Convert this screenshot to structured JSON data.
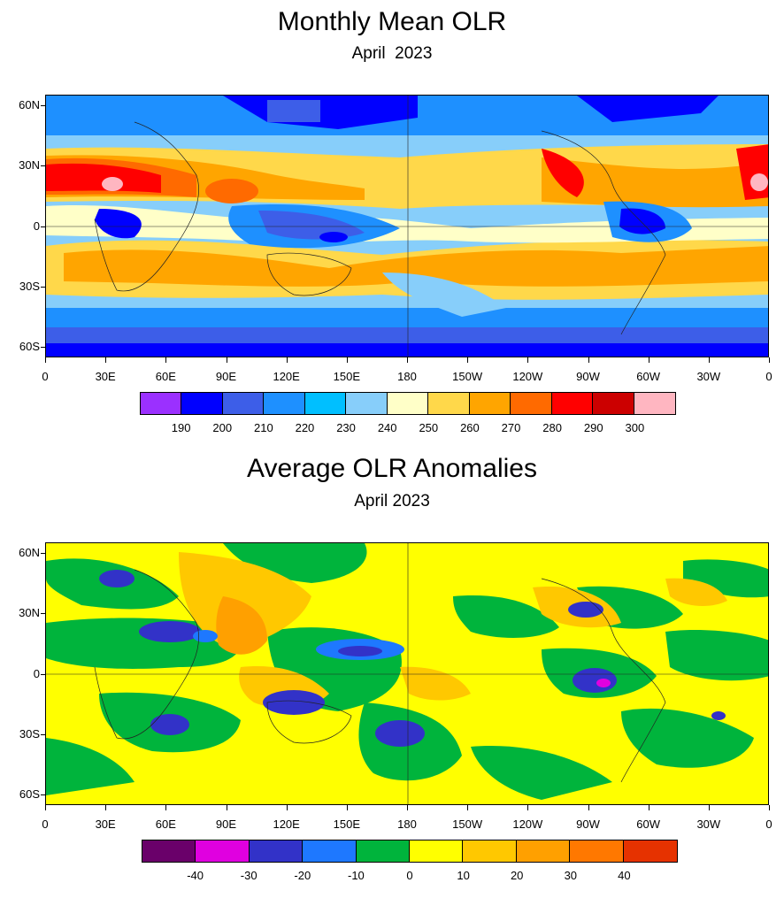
{
  "panel1": {
    "title": "Monthly Mean OLR",
    "subtitle": "April  2023",
    "lat_labels": [
      "60N",
      "30N",
      "0",
      "30S",
      "60S"
    ],
    "lon_labels": [
      "0",
      "30E",
      "60E",
      "90E",
      "120E",
      "150E",
      "180",
      "150W",
      "120W",
      "90W",
      "60W",
      "30W",
      "0"
    ],
    "colorbar": {
      "colors": [
        "#9b30ff",
        "#0000ff",
        "#3d5ee8",
        "#1e90ff",
        "#00bfff",
        "#87cefa",
        "#ffffc8",
        "#ffd84a",
        "#ffa500",
        "#ff6a00",
        "#ff0000",
        "#cc0000",
        "#ffb6c1"
      ],
      "labels": [
        "190",
        "200",
        "210",
        "220",
        "230",
        "240",
        "250",
        "260",
        "270",
        "280",
        "290",
        "300"
      ]
    }
  },
  "panel2": {
    "title": "Average OLR Anomalies",
    "subtitle": "April 2023",
    "lat_labels": [
      "60N",
      "30N",
      "0",
      "30S",
      "60S"
    ],
    "lon_labels": [
      "0",
      "30E",
      "60E",
      "90E",
      "120E",
      "150E",
      "180",
      "150W",
      "120W",
      "90W",
      "60W",
      "30W",
      "0"
    ],
    "colorbar": {
      "colors": [
        "#6a006a",
        "#e000e0",
        "#3232c8",
        "#1e78ff",
        "#00b43c",
        "#ffff00",
        "#ffc800",
        "#ffa000",
        "#ff7800",
        "#e63200"
      ],
      "labels": [
        "-40",
        "-30",
        "-20",
        "-10",
        "0",
        "10",
        "20",
        "30",
        "40"
      ]
    }
  }
}
